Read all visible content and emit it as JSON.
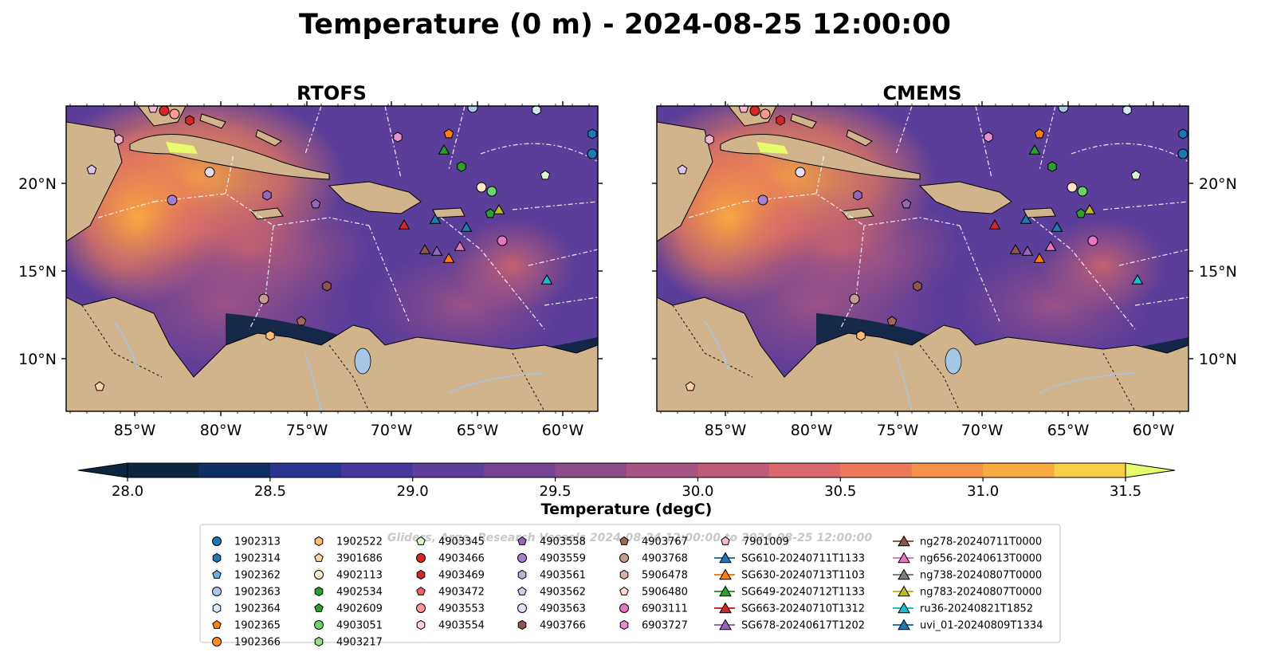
{
  "title": "Temperature (0 m) - 2024-08-25 12:00:00",
  "panels": [
    {
      "title": "RTOFS"
    },
    {
      "title": "CMEMS"
    }
  ],
  "lat_ticks": [
    "20°N",
    "15°N",
    "10°N"
  ],
  "lon_ticks": [
    "85°W",
    "80°W",
    "75°W",
    "70°W",
    "65°W",
    "60°W"
  ],
  "colorbar": {
    "label": "Temperature (degC)",
    "ticks": [
      "28.0",
      "28.5",
      "29.0",
      "29.5",
      "30.0",
      "30.5",
      "31.0",
      "31.5"
    ],
    "colors": [
      "#0b2640",
      "#0d3064",
      "#2a3593",
      "#46379e",
      "#5e3f9d",
      "#764493",
      "#8c4c8b",
      "#a65482",
      "#bd5b78",
      "#d8686a",
      "#ec7a5a",
      "#f69248",
      "#f8ab3e",
      "#f6cf47",
      "#e8fb6a"
    ]
  },
  "watermark": "Gliders, Argo, Research Vessels 2024-08-24 12:00:00 to 2024-08-25 12:00:00",
  "legend": {
    "col1": [
      {
        "label": "1902313",
        "color": "#1f77b4",
        "marker": "circle"
      },
      {
        "label": "1902314",
        "color": "#1f77b4",
        "marker": "hexagon"
      },
      {
        "label": "1902362",
        "color": "#6aaee0",
        "marker": "pentagon"
      },
      {
        "label": "1902363",
        "color": "#aec7e8",
        "marker": "circle"
      },
      {
        "label": "1902364",
        "color": "#d7e9f7",
        "marker": "hexagon"
      },
      {
        "label": "1902365",
        "color": "#ff7f0e",
        "marker": "pentagon"
      },
      {
        "label": "1902366",
        "color": "#ff8c2a",
        "marker": "circle"
      }
    ],
    "col2": [
      {
        "label": "1902522",
        "color": "#ffbb78",
        "marker": "hexagon"
      },
      {
        "label": "3901686",
        "color": "#ffd1a3",
        "marker": "pentagon"
      },
      {
        "label": "4902113",
        "color": "#ffe4c4",
        "marker": "circle"
      },
      {
        "label": "4902534",
        "color": "#2ca02c",
        "marker": "hexagon"
      },
      {
        "label": "4902609",
        "color": "#2ca02c",
        "marker": "pentagon"
      },
      {
        "label": "4903051",
        "color": "#6cd36c",
        "marker": "circle"
      },
      {
        "label": "4903217",
        "color": "#98df8a",
        "marker": "hexagon"
      }
    ],
    "col3": [
      {
        "label": "4903345",
        "color": "#d8f5d0",
        "marker": "pentagon"
      },
      {
        "label": "4903466",
        "color": "#d62728",
        "marker": "circle"
      },
      {
        "label": "4903469",
        "color": "#d62728",
        "marker": "hexagon"
      },
      {
        "label": "4903472",
        "color": "#e8656a",
        "marker": "pentagon"
      },
      {
        "label": "4903553",
        "color": "#ff9896",
        "marker": "circle"
      },
      {
        "label": "4903554",
        "color": "#ffd0cf",
        "marker": "hexagon"
      }
    ],
    "col4": [
      {
        "label": "4903558",
        "color": "#9467bd",
        "marker": "pentagon"
      },
      {
        "label": "4903559",
        "color": "#a77fd0",
        "marker": "circle"
      },
      {
        "label": "4903561",
        "color": "#c5b0d5",
        "marker": "hexagon"
      },
      {
        "label": "4903562",
        "color": "#d9c8ea",
        "marker": "pentagon"
      },
      {
        "label": "4903563",
        "color": "#e9dcf5",
        "marker": "circle"
      },
      {
        "label": "4903766",
        "color": "#8c564b",
        "marker": "hexagon"
      }
    ],
    "col5": [
      {
        "label": "4903767",
        "color": "#a0685b",
        "marker": "pentagon"
      },
      {
        "label": "4903768",
        "color": "#c49c94",
        "marker": "circle"
      },
      {
        "label": "5906478",
        "color": "#dbb1a8",
        "marker": "hexagon"
      },
      {
        "label": "5906480",
        "color": "#ffd6d0",
        "marker": "pentagon"
      },
      {
        "label": "6903111",
        "color": "#e377c2",
        "marker": "circle"
      },
      {
        "label": "6903727",
        "color": "#e98fd0",
        "marker": "hexagon"
      }
    ],
    "col6": [
      {
        "label": "7901009",
        "color": "#f7b6d2",
        "marker": "pentagon"
      },
      {
        "label": "SG610-20240711T1133",
        "color": "#1f77b4",
        "marker": "triangle"
      },
      {
        "label": "SG630-20240713T1103",
        "color": "#ff7f0e",
        "marker": "triangle"
      },
      {
        "label": "SG649-20240712T1133",
        "color": "#2ca02c",
        "marker": "triangle"
      },
      {
        "label": "SG663-20240710T1312",
        "color": "#d62728",
        "marker": "triangle"
      },
      {
        "label": "SG678-20240617T1202",
        "color": "#9467bd",
        "marker": "triangle"
      }
    ],
    "col7": [
      {
        "label": "ng278-20240711T0000",
        "color": "#8c564b",
        "marker": "triangle"
      },
      {
        "label": "ng656-20240613T0000",
        "color": "#e377c2",
        "marker": "triangle"
      },
      {
        "label": "ng738-20240807T0000",
        "color": "#7f7f7f",
        "marker": "triangle"
      },
      {
        "label": "ng783-20240807T0000",
        "color": "#bcbd22",
        "marker": "triangle"
      },
      {
        "label": "ru36-20240821T1852",
        "color": "#17becf",
        "marker": "triangle"
      },
      {
        "label": "uvi_01-20240809T1334",
        "color": "#1f77b4",
        "marker": "triangle"
      }
    ]
  }
}
